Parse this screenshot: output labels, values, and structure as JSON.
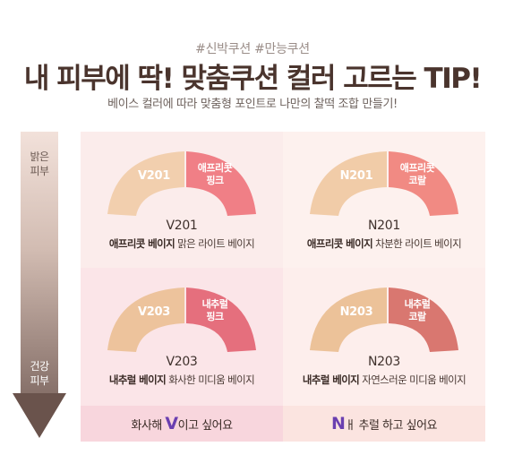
{
  "header": {
    "hashtags": "#신박쿠션 #만능쿠션",
    "title": "내 피부에 딱! 맞춤쿠션 컬러 고르는 TIP!",
    "subtitle": "베이스 컬러에 따라 맞춤형 포인트로 나만의 찰떡 조합 만들기!"
  },
  "skin_scale": {
    "top_label": "밝은\n피부",
    "bottom_label": "건강\n피부"
  },
  "shades": [
    {
      "code": "V201",
      "point_name": "애프리콧\n핑크",
      "desc_bold": "애프리콧 베이지",
      "desc_rest": " 맑은 라이트 베이지",
      "base_color": "#f2cfae",
      "point_color": "#f07f86"
    },
    {
      "code": "N201",
      "point_name": "애프리콧\n코랄",
      "desc_bold": "애프리콧 베이지",
      "desc_rest": " 차분한 라이트 베이지",
      "base_color": "#f1cca8",
      "point_color": "#f18a83"
    },
    {
      "code": "V203",
      "point_name": "내추럴\n핑크",
      "desc_bold": "내추럴 베이지",
      "desc_rest": " 화사한 미디움 베이지",
      "base_color": "#edc39c",
      "point_color": "#e56f7d"
    },
    {
      "code": "N203",
      "point_name": "내추럴\n코랄",
      "desc_bold": "내추럴 베이지",
      "desc_rest": " 자연스러운 미디움 베이지",
      "base_color": "#ecc299",
      "point_color": "#d97770"
    }
  ],
  "bottom": {
    "left_pre": "화사해 ",
    "left_letter": "V",
    "left_post": "이고 싶어요",
    "right_letter": "N",
    "right_post": "ㅐ 추럴 하고 싶어요"
  }
}
